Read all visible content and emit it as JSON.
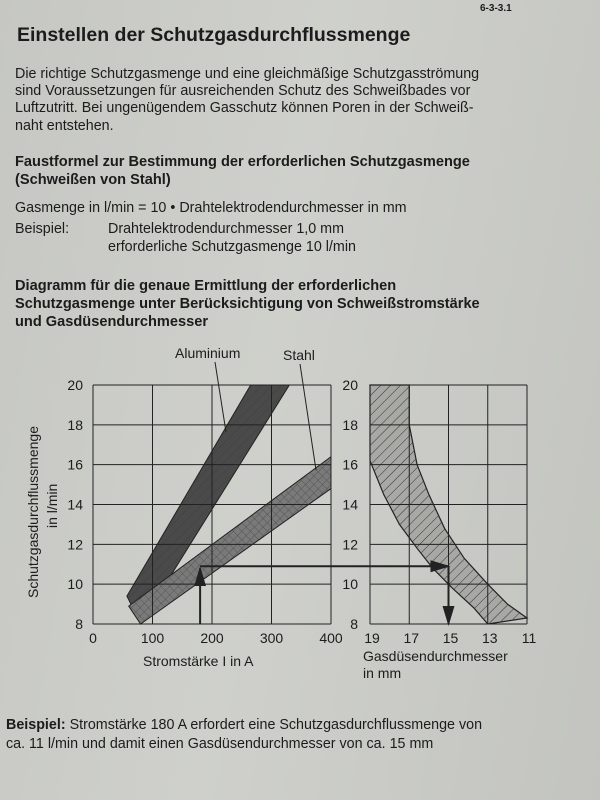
{
  "page_number": "6-3-3.1",
  "title": "Einstellen der Schutzgasdurchflussmenge",
  "intro_lines": [
    "Die richtige Schutzgasmenge und eine gleichmäßige Schutzgasströmung",
    "sind Voraussetzungen für ausreichenden Schutz des Schweißbades vor",
    "Luftzutritt. Bei ungenügendem Gasschutz können Poren in der Schweiß-",
    "naht entstehen."
  ],
  "rule_heading": [
    "Faustformel zur Bestimmung der erforderlichen Schutzgasmenge",
    "(Schweißen von Stahl)"
  ],
  "formula": "Gasmenge in l/min = 10 • Drahtelektrodendurchmesser in mm",
  "example": {
    "label": "Beispiel:",
    "line1": "Drahtelektrodendurchmesser 1,0 mm",
    "line2": "erforderliche Schutzgasmenge 10 l/min"
  },
  "diagram_heading": [
    "Diagramm für die genaue Ermittlung der erforderlichen",
    "Schutzgasmenge unter Berücksichtigung von Schweißstromstärke",
    "und Gasdüsendurchmesser"
  ],
  "bottom": {
    "label": "Beispiel:",
    "line1": " Stromstärke 180 A erfordert eine Schutzgasdurchflussmenge von",
    "line2": "ca. 11 l/min und damit einen Gasdüsendurchmesser von ca. 15 mm"
  },
  "chart_data": [
    {
      "type": "area",
      "ylabel": [
        "Schutzgasdurchflussmenge",
        "in l/min"
      ],
      "xlabel": "Stromstärke I in A",
      "xlim": [
        0,
        400
      ],
      "ylim": [
        8,
        20
      ],
      "xticks": [
        "0",
        "100",
        "200",
        "300",
        "400"
      ],
      "yticks": [
        "8",
        "10",
        "12",
        "14",
        "16",
        "18",
        "20"
      ],
      "grid": true,
      "series": [
        {
          "name": "Aluminium",
          "color": "#4a4a4a",
          "lower": [
            [
              80,
              8
            ],
            [
              330,
              20
            ]
          ],
          "upper": [
            [
              57,
              9.4
            ],
            [
              265,
              20
            ]
          ]
        },
        {
          "name": "Stahl",
          "color": "#7a7a7a",
          "lower": [
            [
              80,
              8
            ],
            [
              400,
              14.8
            ]
          ],
          "upper": [
            [
              60,
              8.9
            ],
            [
              400,
              16.4
            ]
          ]
        }
      ],
      "example_current": 180,
      "example_flow": 10.9
    },
    {
      "type": "area",
      "xlabel": "Gasdüsendurchmesser in mm",
      "xlim": [
        19,
        11
      ],
      "ylim": [
        8,
        20
      ],
      "xticks": [
        "19",
        "17",
        "15",
        "13",
        "11"
      ],
      "yticks": [
        "8",
        "10",
        "12",
        "14",
        "16",
        "18",
        "20"
      ],
      "grid": true,
      "band_color": "#a8a8a4",
      "band": {
        "left": [
          [
            19,
            20
          ],
          [
            19,
            16.2
          ],
          [
            18.3,
            14.5
          ],
          [
            17.5,
            13
          ],
          [
            16.6,
            11.8
          ],
          [
            15.8,
            10.8
          ],
          [
            14.8,
            9.8
          ],
          [
            13.7,
            8.8
          ],
          [
            13,
            8
          ]
        ],
        "right": [
          [
            17,
            20
          ],
          [
            17,
            18
          ],
          [
            16.6,
            16
          ],
          [
            16,
            14.5
          ],
          [
            15.2,
            12.8
          ],
          [
            14.2,
            11.3
          ],
          [
            13,
            10
          ],
          [
            12,
            9
          ],
          [
            11,
            8.3
          ]
        ]
      },
      "example_diameter": 15
    }
  ]
}
